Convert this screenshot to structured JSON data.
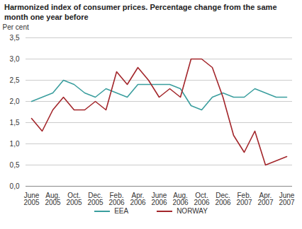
{
  "chart_data": {
    "type": "line",
    "title": "Harmonized index of consumer prices. Percentage change from the same month one year before",
    "y_label": "Per cent",
    "categories": [
      "June 2005",
      null,
      "Aug. 2005",
      null,
      "Oct. 2005",
      null,
      "Dec. 2005",
      null,
      "Feb. 2006",
      null,
      "Apr. 2006",
      null,
      "June 2006",
      null,
      "Aug. 2006",
      null,
      "Oct. 2006",
      null,
      "Dec. 2006",
      null,
      "Feb. 2007",
      null,
      "Apr. 2007",
      null,
      "June 2007"
    ],
    "series": [
      {
        "name": "EEA",
        "color": "#3a9e9e",
        "values": [
          2.0,
          2.1,
          2.2,
          2.5,
          2.4,
          2.2,
          2.1,
          2.3,
          2.2,
          2.1,
          2.4,
          2.4,
          2.4,
          2.4,
          2.3,
          1.9,
          1.8,
          2.1,
          2.2,
          2.1,
          2.1,
          2.3,
          2.2,
          2.1,
          2.1
        ]
      },
      {
        "name": "NORWAY",
        "color": "#a3262b",
        "values": [
          1.6,
          1.3,
          1.8,
          2.1,
          1.8,
          1.8,
          2.0,
          1.8,
          2.7,
          2.4,
          2.8,
          2.5,
          2.1,
          2.3,
          2.1,
          3.0,
          3.0,
          2.8,
          2.1,
          1.2,
          0.8,
          1.3,
          0.5,
          0.6,
          0.7
        ]
      }
    ],
    "ylim": [
      0,
      3.5
    ],
    "yticks": [
      {
        "value": 0,
        "label": "0,0"
      },
      {
        "value": 0.5,
        "label": "0,5"
      },
      {
        "value": 1,
        "label": "1,0"
      },
      {
        "value": 1.5,
        "label": "1,5"
      },
      {
        "value": 2,
        "label": "2,0"
      },
      {
        "value": 2.5,
        "label": "2,5"
      },
      {
        "value": 3,
        "label": "3,0"
      },
      {
        "value": 3.5,
        "label": "3,5"
      }
    ],
    "grid": true,
    "legend": "bottom"
  }
}
